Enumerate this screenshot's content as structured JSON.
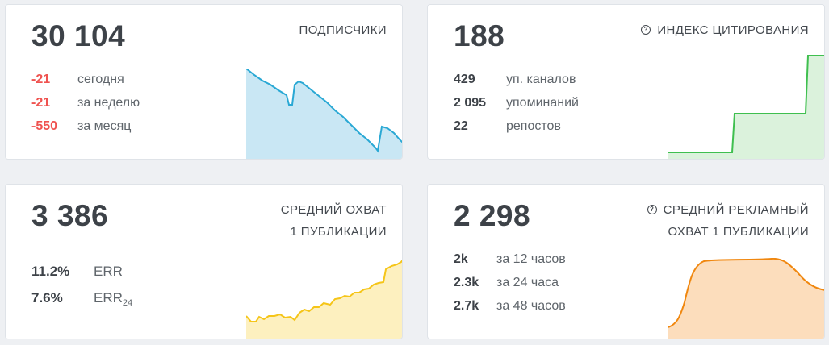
{
  "cards": {
    "subscribers": {
      "value": "30 104",
      "title": "ПОДПИСЧИКИ",
      "stats": [
        {
          "value": "-21",
          "label": "сегодня"
        },
        {
          "value": "-21",
          "label": "за неделю"
        },
        {
          "value": "-550",
          "label": "за месяц"
        }
      ],
      "sparkline": {
        "color": "#29a8d4",
        "fill": "#bfe3f2"
      }
    },
    "citation": {
      "value": "188",
      "title": "ИНДЕКС ЦИТИРОВАНИЯ",
      "icon": "info-icon",
      "stats": [
        {
          "value": "429",
          "label": "уп. каналов"
        },
        {
          "value": "2 095",
          "label": "упоминаний"
        },
        {
          "value": "22",
          "label": "репостов"
        }
      ],
      "sparkline": {
        "color": "#3fbf4f",
        "fill": "#d5f0d6"
      }
    },
    "reach": {
      "value": "3 386",
      "title": "СРЕДНИЙ ОХВАТ\n1 ПУБЛИКАЦИИ",
      "stats": [
        {
          "value": "11.2%",
          "label": "ERR"
        },
        {
          "value": "7.6%",
          "label": "ERR",
          "label_sub": "24"
        }
      ],
      "sparkline": {
        "color": "#f5c518",
        "fill": "#fdeeb8"
      }
    },
    "adreach": {
      "value": "2 298",
      "title": "СРЕДНИЙ РЕКЛАМНЫЙ\nОХВАТ 1 ПУБЛИКАЦИИ",
      "icon": "info-icon",
      "stats": [
        {
          "value": "2k",
          "label": "за 12 часов"
        },
        {
          "value": "2.3k",
          "label": "за 24 часа"
        },
        {
          "value": "2.7k",
          "label": "за 48 часов"
        }
      ],
      "sparkline": {
        "color": "#f0870f",
        "fill": "#fcd9b5"
      }
    }
  }
}
